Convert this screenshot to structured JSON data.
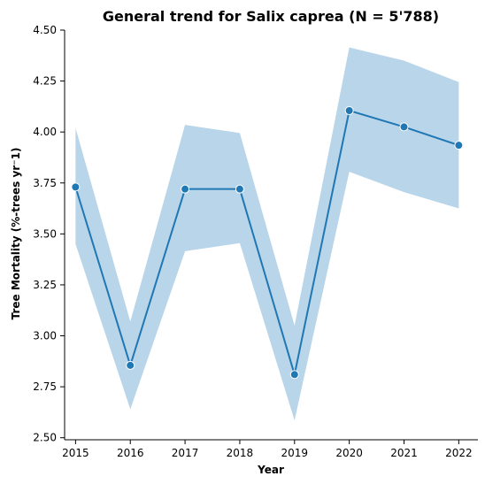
{
  "chart_data": {
    "type": "line",
    "title": "General trend for Salix caprea  (N = 5'788)",
    "xlabel": "Year",
    "ylabel": "Tree Mortality (%-trees yr⁻1)",
    "x": [
      2015,
      2016,
      2017,
      2018,
      2019,
      2020,
      2021,
      2022
    ],
    "xlim": [
      2014.8,
      2022.35
    ],
    "ylim": [
      2.49,
      4.5
    ],
    "yticks": [
      "2.50",
      "2.75",
      "3.00",
      "3.25",
      "3.50",
      "3.75",
      "4.00",
      "4.25",
      "4.50"
    ],
    "series": [
      {
        "values": [
          3.73,
          2.855,
          3.72,
          3.72,
          2.81,
          4.105,
          4.025,
          3.935
        ],
        "ci_lower": [
          3.45,
          2.64,
          3.415,
          3.455,
          2.585,
          3.805,
          3.705,
          3.625
        ],
        "ci_upper": [
          4.02,
          3.07,
          4.035,
          3.995,
          3.05,
          4.415,
          4.35,
          4.245
        ],
        "markers": true
      }
    ],
    "colors": {
      "line": "#1f77b4",
      "band": "#b9d5e9"
    },
    "grid": false,
    "legend": "none"
  }
}
